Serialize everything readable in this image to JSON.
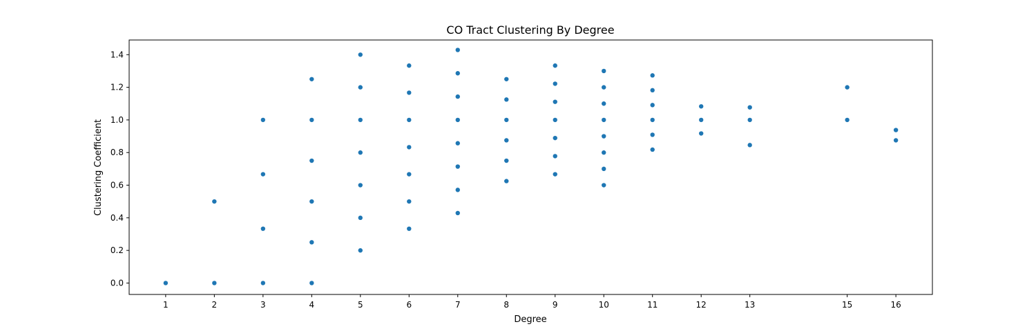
{
  "chart_data": {
    "type": "scatter",
    "title": "CO Tract Clustering By Degree",
    "xlabel": "Degree",
    "ylabel": "Clustering Coefficient",
    "xlim": [
      0.25,
      16.75
    ],
    "ylim": [
      -0.07,
      1.49
    ],
    "xticks": [
      1,
      2,
      3,
      4,
      5,
      6,
      7,
      8,
      9,
      10,
      11,
      12,
      13,
      15,
      16
    ],
    "yticks": [
      0.0,
      0.2,
      0.4,
      0.6,
      0.8,
      1.0,
      1.2,
      1.4
    ],
    "ytick_labels": [
      "0.0",
      "0.2",
      "0.4",
      "0.6",
      "0.8",
      "1.0",
      "1.2",
      "1.4"
    ],
    "grid": false,
    "marker_color": "#1f77b4",
    "series": [
      {
        "points": [
          [
            1,
            0.0
          ],
          [
            2,
            0.0
          ],
          [
            2,
            0.5
          ],
          [
            3,
            0.0
          ],
          [
            3,
            0.333
          ],
          [
            3,
            0.667
          ],
          [
            3,
            1.0
          ],
          [
            4,
            0.0
          ],
          [
            4,
            0.25
          ],
          [
            4,
            0.5
          ],
          [
            4,
            0.75
          ],
          [
            4,
            1.0
          ],
          [
            4,
            1.25
          ],
          [
            5,
            0.2
          ],
          [
            5,
            0.4
          ],
          [
            5,
            0.6
          ],
          [
            5,
            0.8
          ],
          [
            5,
            1.0
          ],
          [
            5,
            1.2
          ],
          [
            5,
            1.4
          ],
          [
            6,
            0.333
          ],
          [
            6,
            0.5
          ],
          [
            6,
            0.667
          ],
          [
            6,
            0.833
          ],
          [
            6,
            1.0
          ],
          [
            6,
            1.167
          ],
          [
            6,
            1.333
          ],
          [
            7,
            0.429
          ],
          [
            7,
            0.571
          ],
          [
            7,
            0.714
          ],
          [
            7,
            0.857
          ],
          [
            7,
            1.0
          ],
          [
            7,
            1.143
          ],
          [
            7,
            1.286
          ],
          [
            7,
            1.429
          ],
          [
            8,
            0.625
          ],
          [
            8,
            0.75
          ],
          [
            8,
            0.875
          ],
          [
            8,
            1.0
          ],
          [
            8,
            1.125
          ],
          [
            8,
            1.25
          ],
          [
            9,
            0.667
          ],
          [
            9,
            0.778
          ],
          [
            9,
            0.889
          ],
          [
            9,
            1.0
          ],
          [
            9,
            1.111
          ],
          [
            9,
            1.222
          ],
          [
            9,
            1.333
          ],
          [
            10,
            0.6
          ],
          [
            10,
            0.7
          ],
          [
            10,
            0.8
          ],
          [
            10,
            0.9
          ],
          [
            10,
            1.0
          ],
          [
            10,
            1.1
          ],
          [
            10,
            1.2
          ],
          [
            10,
            1.3
          ],
          [
            11,
            0.818
          ],
          [
            11,
            0.909
          ],
          [
            11,
            1.0
          ],
          [
            11,
            1.091
          ],
          [
            11,
            1.182
          ],
          [
            11,
            1.273
          ],
          [
            12,
            0.917
          ],
          [
            12,
            1.0
          ],
          [
            12,
            1.083
          ],
          [
            13,
            0.846
          ],
          [
            13,
            1.0
          ],
          [
            13,
            1.077
          ],
          [
            15,
            1.0
          ],
          [
            15,
            1.2
          ],
          [
            16,
            0.875
          ],
          [
            16,
            0.938
          ]
        ]
      }
    ]
  }
}
